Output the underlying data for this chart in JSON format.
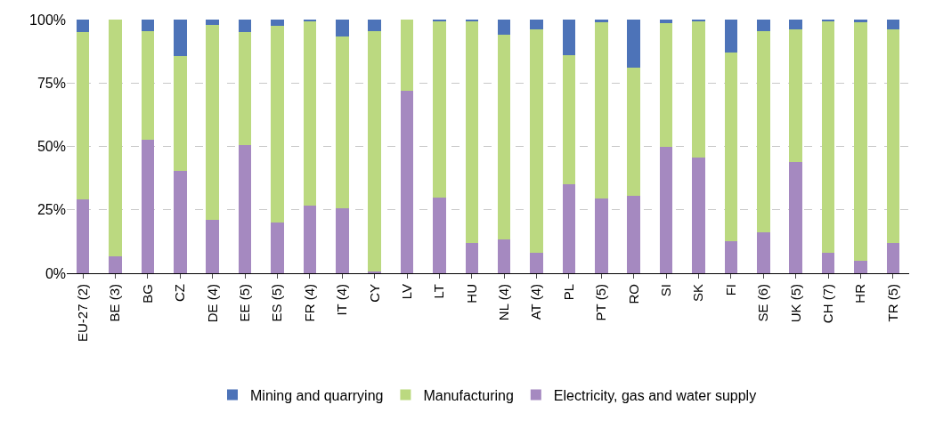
{
  "chart_data": {
    "type": "bar",
    "stacked": true,
    "categories": [
      "EU-27 (2)",
      "BE (3)",
      "BG",
      "CZ",
      "DE (4)",
      "EE (5)",
      "ES (5)",
      "FR (4)",
      "IT (4)",
      "CY",
      "LV",
      "LT",
      "HU",
      "NL (4)",
      "AT (4)",
      "PL",
      "PT (5)",
      "RO",
      "SI",
      "SK",
      "FI",
      "SE (6)",
      "UK (5)",
      "CH (7)",
      "HR",
      "TR (5)"
    ],
    "series": [
      {
        "name": "Electricity, gas and water supply",
        "color": "#a589c0",
        "values": [
          29,
          6.5,
          52.5,
          40.5,
          21,
          50.5,
          20,
          26.5,
          25.5,
          0.7,
          72,
          30,
          12,
          13.5,
          8,
          35,
          29.5,
          30.5,
          50,
          45.5,
          12.5,
          16,
          44,
          8,
          5,
          12
        ]
      },
      {
        "name": "Manufacturing",
        "color": "#bbd980",
        "values": [
          66,
          93.5,
          43,
          45,
          77,
          44.5,
          77.5,
          72.8,
          68,
          94.8,
          28,
          69.5,
          87.5,
          80.5,
          88,
          51,
          69.3,
          50.5,
          48.5,
          54,
          74.5,
          79.5,
          52,
          91.5,
          94,
          84
        ]
      },
      {
        "name": "Mining and quarrying",
        "color": "#4d73b8",
        "values": [
          5,
          0,
          4.5,
          14.5,
          2,
          5,
          2.5,
          0.7,
          6.5,
          4.5,
          0,
          0.5,
          0.5,
          6,
          4,
          14,
          1.2,
          19,
          1.5,
          0.5,
          13,
          4.5,
          4,
          0.5,
          1,
          4
        ]
      }
    ],
    "ylim": [
      0,
      100
    ],
    "yticks": [
      {
        "value": 0,
        "label": "0%"
      },
      {
        "value": 25,
        "label": "25%"
      },
      {
        "value": 50,
        "label": "50%"
      },
      {
        "value": 75,
        "label": "75%"
      },
      {
        "value": 100,
        "label": "100%"
      }
    ],
    "grid": "y",
    "legend": "bottom"
  }
}
